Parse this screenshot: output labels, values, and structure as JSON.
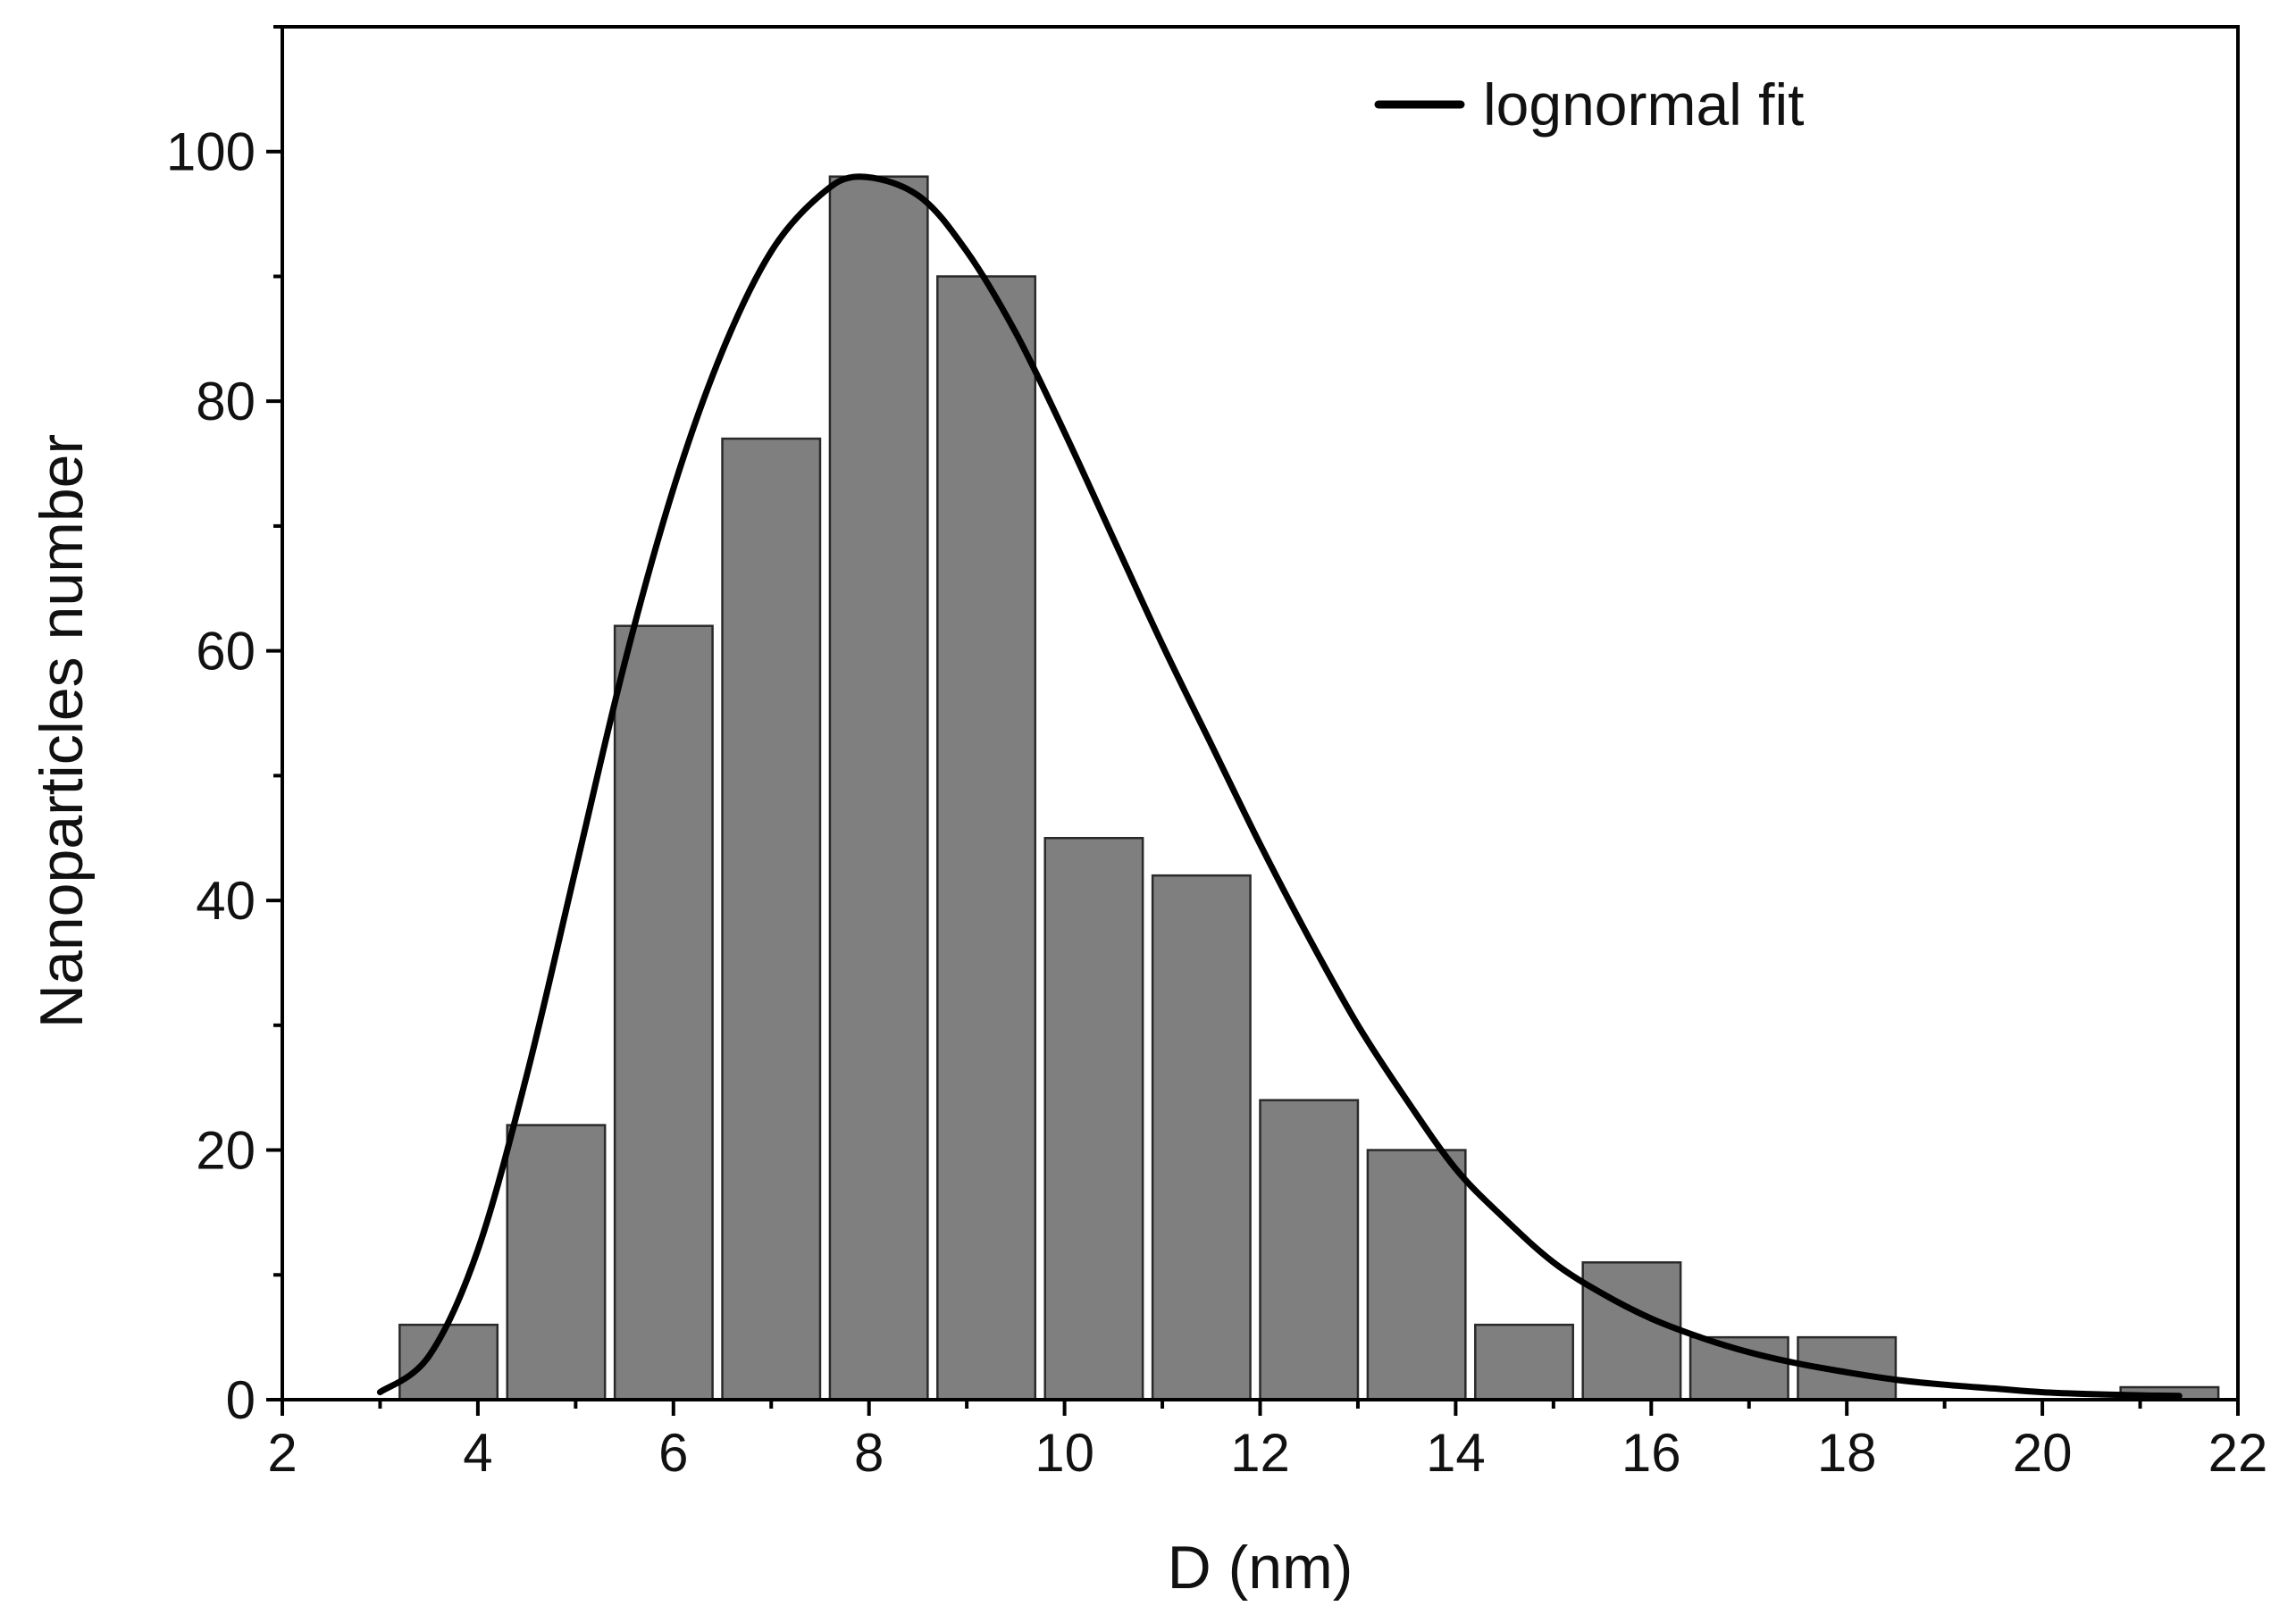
{
  "chart_data": {
    "type": "bar",
    "title": "",
    "xlabel": "D (nm)",
    "ylabel": "Nanoparticles number",
    "xlim": [
      2,
      22
    ],
    "ylim": [
      0,
      110
    ],
    "x_major_ticks": [
      2,
      4,
      6,
      8,
      10,
      12,
      14,
      16,
      18,
      20,
      22
    ],
    "y_major_ticks": [
      0,
      20,
      40,
      60,
      80,
      100
    ],
    "grid": false,
    "bin_width": 1.1,
    "bars": [
      {
        "center": 3.7,
        "value": 6
      },
      {
        "center": 4.8,
        "value": 22
      },
      {
        "center": 5.9,
        "value": 62
      },
      {
        "center": 7.0,
        "value": 77
      },
      {
        "center": 8.1,
        "value": 98
      },
      {
        "center": 9.2,
        "value": 90
      },
      {
        "center": 10.3,
        "value": 45
      },
      {
        "center": 11.4,
        "value": 42
      },
      {
        "center": 12.5,
        "value": 24
      },
      {
        "center": 13.6,
        "value": 20
      },
      {
        "center": 14.7,
        "value": 6
      },
      {
        "center": 15.8,
        "value": 11
      },
      {
        "center": 16.9,
        "value": 5
      },
      {
        "center": 18.0,
        "value": 5
      },
      {
        "center": 19.1,
        "value": 0
      },
      {
        "center": 20.2,
        "value": 0
      },
      {
        "center": 21.3,
        "value": 1
      }
    ],
    "bar_color": "#7f7f7f",
    "fit": {
      "name": "lognormal fit",
      "color": "#000000",
      "x_range": [
        2.95,
        21.4
      ],
      "points": [
        {
          "x": 3.0,
          "y": 0.6
        },
        {
          "x": 3.5,
          "y": 3.5
        },
        {
          "x": 4.0,
          "y": 12.0
        },
        {
          "x": 4.5,
          "y": 26.0
        },
        {
          "x": 5.0,
          "y": 42.5
        },
        {
          "x": 5.5,
          "y": 59.0
        },
        {
          "x": 6.0,
          "y": 73.0
        },
        {
          "x": 6.5,
          "y": 84.0
        },
        {
          "x": 7.0,
          "y": 92.0
        },
        {
          "x": 7.5,
          "y": 96.5
        },
        {
          "x": 7.9,
          "y": 98.0
        },
        {
          "x": 8.5,
          "y": 96.5
        },
        {
          "x": 9.0,
          "y": 92.0
        },
        {
          "x": 9.5,
          "y": 85.5
        },
        {
          "x": 10.0,
          "y": 77.5
        },
        {
          "x": 10.5,
          "y": 69.0
        },
        {
          "x": 11.0,
          "y": 60.5
        },
        {
          "x": 11.5,
          "y": 52.5
        },
        {
          "x": 12.0,
          "y": 44.5
        },
        {
          "x": 12.5,
          "y": 37.0
        },
        {
          "x": 13.0,
          "y": 30.0
        },
        {
          "x": 13.5,
          "y": 24.0
        },
        {
          "x": 14.0,
          "y": 18.5
        },
        {
          "x": 14.5,
          "y": 14.5
        },
        {
          "x": 15.0,
          "y": 11.0
        },
        {
          "x": 15.5,
          "y": 8.5
        },
        {
          "x": 16.0,
          "y": 6.5
        },
        {
          "x": 16.5,
          "y": 5.0
        },
        {
          "x": 17.0,
          "y": 3.8
        },
        {
          "x": 17.5,
          "y": 2.9
        },
        {
          "x": 18.0,
          "y": 2.2
        },
        {
          "x": 18.5,
          "y": 1.6
        },
        {
          "x": 19.0,
          "y": 1.2
        },
        {
          "x": 19.5,
          "y": 0.9
        },
        {
          "x": 20.0,
          "y": 0.6
        },
        {
          "x": 20.5,
          "y": 0.45
        },
        {
          "x": 21.0,
          "y": 0.35
        },
        {
          "x": 21.4,
          "y": 0.3
        }
      ]
    },
    "legend": {
      "position": "top-right",
      "entries": [
        {
          "label": "lognormal fit",
          "color": "#000000"
        }
      ]
    }
  }
}
